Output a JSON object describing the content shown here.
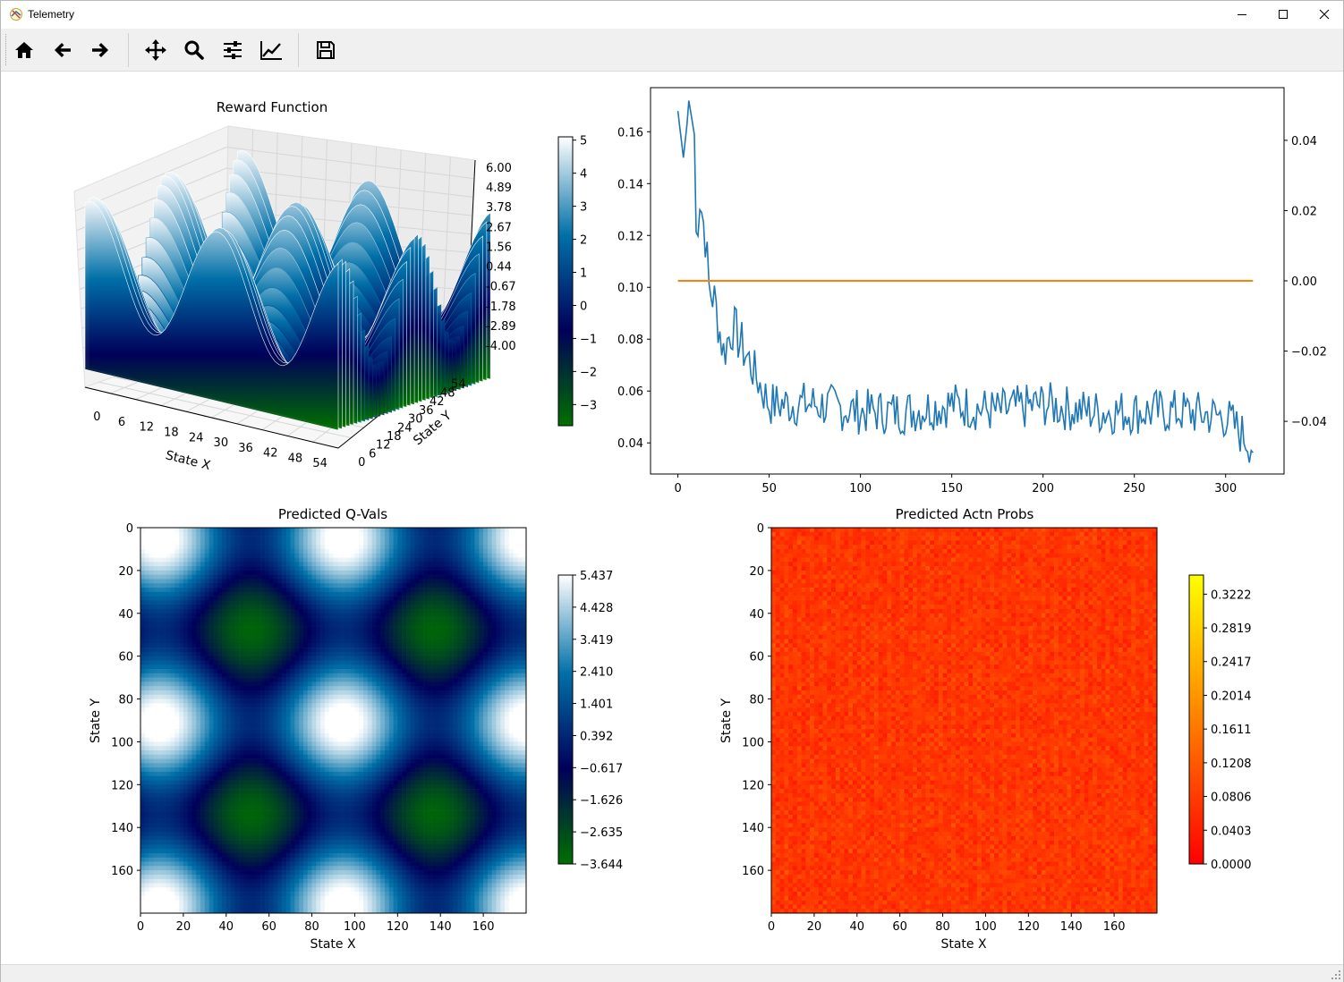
{
  "window": {
    "title": "Telemetry"
  },
  "toolbar": {
    "buttons": [
      {
        "name": "home",
        "icon": "home-icon"
      },
      {
        "name": "back",
        "icon": "arrow-left-icon"
      },
      {
        "name": "forward",
        "icon": "arrow-right-icon"
      },
      {
        "name": "pan",
        "icon": "move-icon"
      },
      {
        "name": "zoom",
        "icon": "magnifier-icon"
      },
      {
        "name": "configure-subplots",
        "icon": "sliders-icon"
      },
      {
        "name": "edit-axis",
        "icon": "line-chart-icon"
      },
      {
        "name": "save",
        "icon": "floppy-disk-icon"
      }
    ]
  },
  "chart_data": [
    {
      "type": "surface3d",
      "title": "Reward Function",
      "xlabel": "State X",
      "ylabel": "State Y",
      "xticks": [
        "0",
        "6",
        "12",
        "18",
        "24",
        "30",
        "36",
        "42",
        "48",
        "54"
      ],
      "yticks": [
        "0",
        "6",
        "12",
        "18",
        "24",
        "30",
        "36",
        "42",
        "48",
        "54"
      ],
      "zticks": [
        "6.00",
        "4.89",
        "3.78",
        "2.67",
        "1.56",
        "0.44",
        "-0.67",
        "-1.78",
        "-2.89",
        "-4.00"
      ],
      "zlim": [
        -4.0,
        6.0
      ],
      "colormap": [
        "#007000",
        "#00005a",
        "#0070a8",
        "#ffffff"
      ],
      "colorbar": {
        "ticks": [
          "5",
          "4",
          "3",
          "2",
          "1",
          "0",
          "−1",
          "−2",
          "−3"
        ],
        "range": [
          -3.64,
          5.1
        ]
      }
    },
    {
      "type": "line",
      "title": "",
      "xticks": [
        "0",
        "50",
        "100",
        "150",
        "200",
        "250",
        "300"
      ],
      "yticks_left": [
        "0.16",
        "0.14",
        "0.12",
        "0.10",
        "0.08",
        "0.06",
        "0.04"
      ],
      "yticks_right": [
        "0.04",
        "0.02",
        "0.00",
        "−0.02",
        "−0.04"
      ],
      "xlim": [
        -15,
        332
      ],
      "ylim": [
        0.028,
        0.177
      ],
      "ylim_right": [
        -0.055,
        0.055
      ],
      "series": [
        {
          "color": "#1f77b4",
          "axis": "left",
          "n_points": 316,
          "start": 0.168,
          "plateau": 0.052,
          "samples": [
            [
              0,
              0.168
            ],
            [
              3,
              0.15
            ],
            [
              5,
              0.163
            ],
            [
              6,
              0.172
            ],
            [
              9,
              0.159
            ],
            [
              10,
              0.12
            ],
            [
              12,
              0.135
            ],
            [
              15,
              0.12
            ],
            [
              17,
              0.1
            ],
            [
              20,
              0.095
            ],
            [
              25,
              0.075
            ],
            [
              30,
              0.085
            ],
            [
              40,
              0.07
            ],
            [
              50,
              0.055
            ],
            [
              75,
              0.055
            ],
            [
              100,
              0.052
            ],
            [
              125,
              0.052
            ],
            [
              150,
              0.055
            ],
            [
              175,
              0.052
            ],
            [
              200,
              0.055
            ],
            [
              225,
              0.052
            ],
            [
              250,
              0.052
            ],
            [
              275,
              0.052
            ],
            [
              300,
              0.05
            ],
            [
              315,
              0.039
            ]
          ]
        },
        {
          "color": "#ff7f0e",
          "axis": "right",
          "constant": 0.0,
          "x_range": [
            0,
            315
          ]
        }
      ]
    },
    {
      "type": "heatmap",
      "title": "Predicted Q-Vals",
      "xlabel": "State X",
      "ylabel": "State Y",
      "xticks": [
        "0",
        "20",
        "40",
        "60",
        "80",
        "100",
        "120",
        "140",
        "160"
      ],
      "yticks": [
        "0",
        "20",
        "40",
        "60",
        "80",
        "100",
        "120",
        "140",
        "160"
      ],
      "grid_size": 180,
      "colormap": [
        "#007000",
        "#00005a",
        "#0070a8",
        "#ffffff"
      ],
      "value_range": [
        -3.644,
        5.437
      ],
      "colorbar": {
        "ticks": [
          "5.437",
          "4.428",
          "3.419",
          "2.410",
          "1.401",
          "0.392",
          "−0.617",
          "−1.626",
          "−2.635",
          "−3.644"
        ]
      }
    },
    {
      "type": "heatmap",
      "title": "Predicted Actn Probs",
      "xlabel": "State X",
      "ylabel": "State Y",
      "xticks": [
        "0",
        "20",
        "40",
        "60",
        "80",
        "100",
        "120",
        "140",
        "160"
      ],
      "yticks": [
        "0",
        "20",
        "40",
        "60",
        "80",
        "100",
        "120",
        "140",
        "160"
      ],
      "grid_size": 180,
      "colormap": [
        "#ff0000",
        "#ff8000",
        "#ffff00"
      ],
      "value_range": [
        0.0,
        0.345
      ],
      "colorbar": {
        "ticks": [
          "0.3222",
          "0.2819",
          "0.2417",
          "0.2014",
          "0.1611",
          "0.1208",
          "0.0806",
          "0.0403",
          "0.0000"
        ]
      }
    }
  ]
}
